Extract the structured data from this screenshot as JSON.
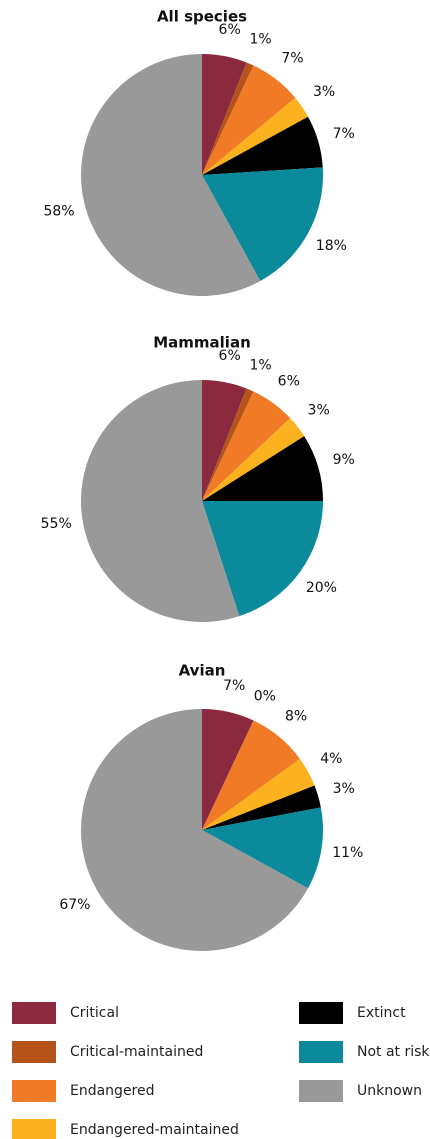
{
  "chart_data": [
    {
      "type": "pie",
      "title": "All species",
      "categories": [
        "Critical",
        "Critical-maintained",
        "Endangered",
        "Endangered-maintained",
        "Extinct",
        "Not at risk",
        "Unknown"
      ],
      "colors": [
        "#8b2a3e",
        "#b5541a",
        "#f07a25",
        "#fbb21e",
        "#000000",
        "#0a8a9a",
        "#999999"
      ],
      "values": [
        6,
        1,
        7,
        3,
        7,
        18,
        58
      ],
      "value_labels": [
        "6%",
        "1%",
        "7%",
        "3%",
        "7%",
        "18%",
        "58%"
      ]
    },
    {
      "type": "pie",
      "title": "Mammalian",
      "categories": [
        "Critical",
        "Critical-maintained",
        "Endangered",
        "Endangered-maintained",
        "Extinct",
        "Not at risk",
        "Unknown"
      ],
      "colors": [
        "#8b2a3e",
        "#b5541a",
        "#f07a25",
        "#fbb21e",
        "#000000",
        "#0a8a9a",
        "#999999"
      ],
      "values": [
        6,
        1,
        6,
        3,
        9,
        20,
        55
      ],
      "value_labels": [
        "6%",
        "1%",
        "6%",
        "3%",
        "9%",
        "20%",
        "55%"
      ]
    },
    {
      "type": "pie",
      "title": "Avian",
      "categories": [
        "Critical",
        "Critical-maintained",
        "Endangered",
        "Endangered-maintained",
        "Extinct",
        "Not at risk",
        "Unknown"
      ],
      "colors": [
        "#8b2a3e",
        "#b5541a",
        "#f07a25",
        "#fbb21e",
        "#000000",
        "#0a8a9a",
        "#999999"
      ],
      "values": [
        7,
        0,
        8,
        4,
        3,
        11,
        67
      ],
      "value_labels": [
        "7%",
        "0%",
        "8%",
        "4%",
        "3%",
        "11%",
        "67%"
      ]
    }
  ]
}
